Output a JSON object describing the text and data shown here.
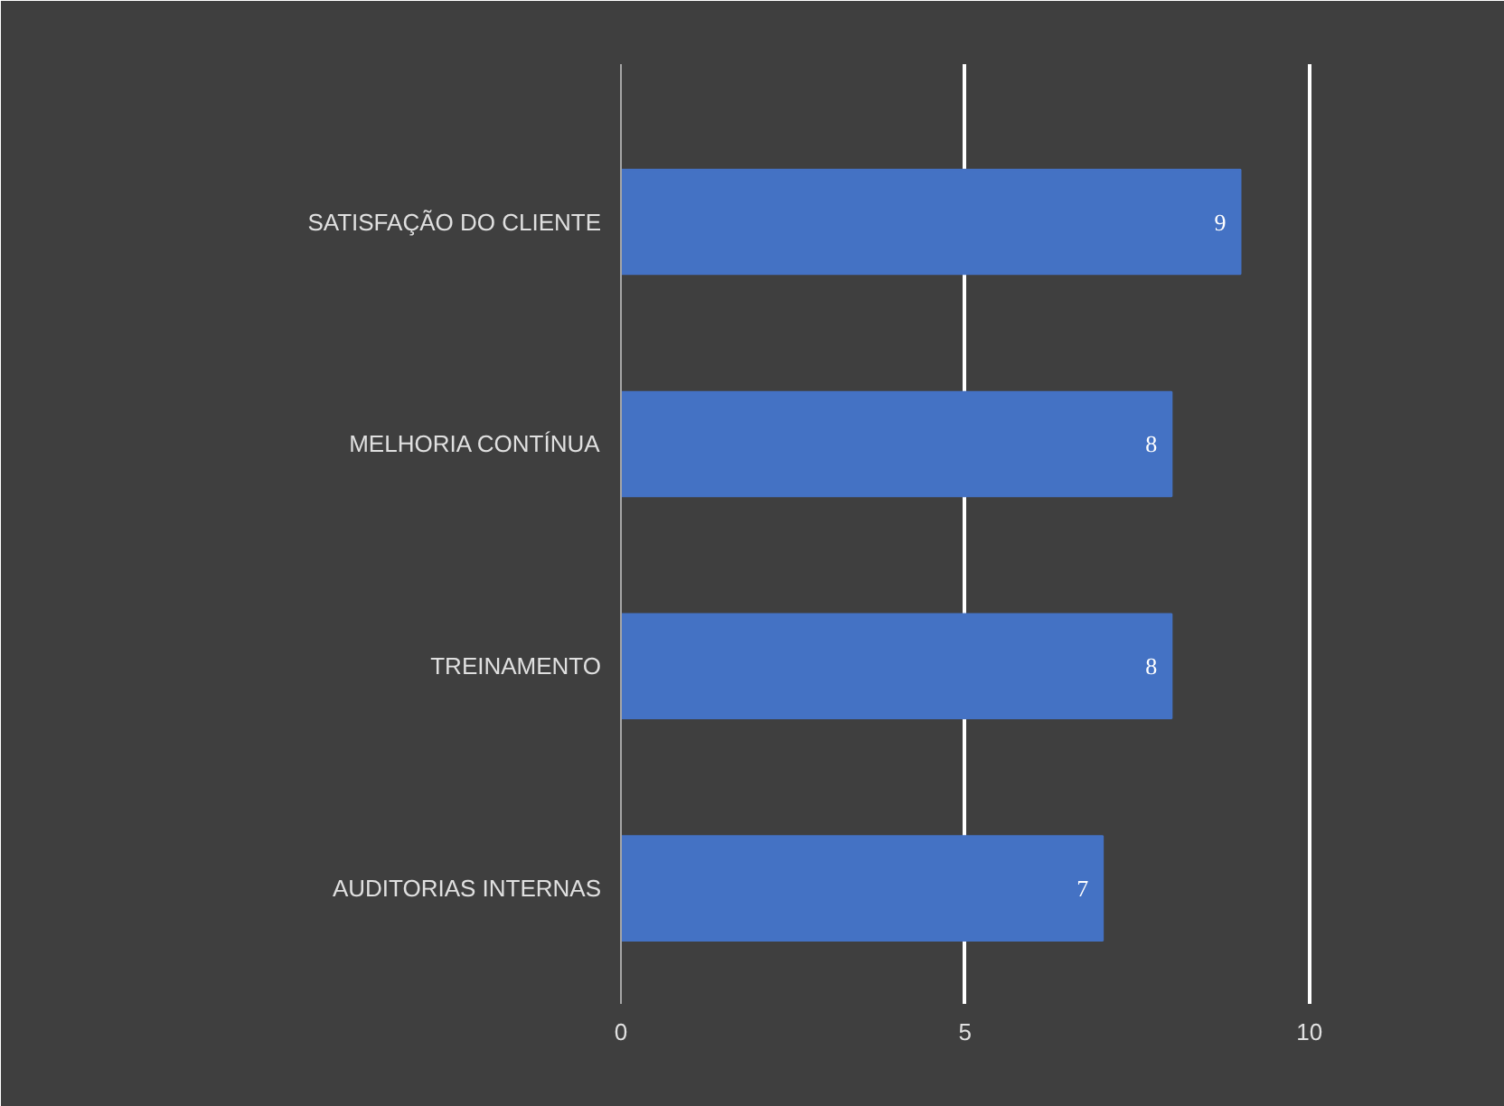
{
  "chart_data": {
    "type": "bar",
    "orientation": "horizontal",
    "categories": [
      "SATISFAÇÃO DO CLIENTE",
      "MELHORIA CONTÍNUA",
      "TREINAMENTO",
      "AUDITORIAS INTERNAS"
    ],
    "values": [
      9,
      8,
      8,
      7
    ],
    "color": "#4472c4",
    "xlim": [
      0,
      12
    ],
    "xticks": [
      0,
      5,
      10
    ],
    "grid": "x",
    "data_labels": true
  }
}
